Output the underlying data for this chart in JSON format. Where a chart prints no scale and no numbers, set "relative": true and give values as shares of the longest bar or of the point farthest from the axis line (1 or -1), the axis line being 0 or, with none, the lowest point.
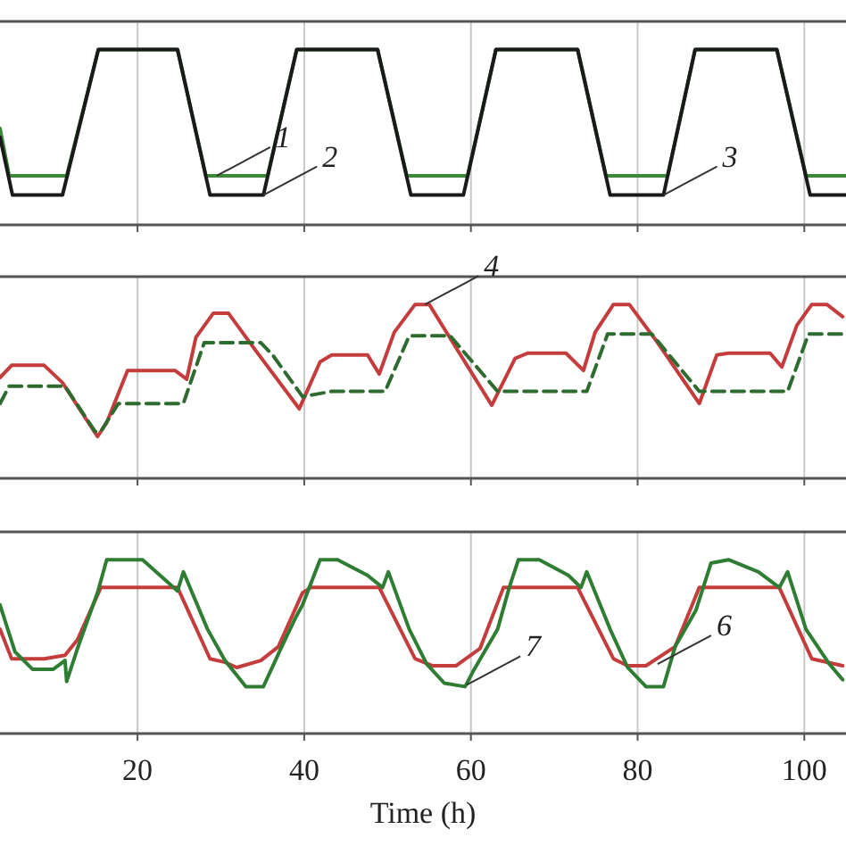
{
  "chart_data": [
    {
      "type": "line",
      "relative": true,
      "xlim": [
        3.5,
        105
      ],
      "xticks": [
        20,
        40,
        60,
        80,
        100
      ],
      "grid": "x",
      "tick_labels": false,
      "series": [
        {
          "color": "#3a8a3a",
          "x": [
            3.5,
            4.6,
            11.5,
            15.3,
            24.8,
            28.2,
            35.6,
            39.1,
            48.8,
            52.3,
            59.6,
            63,
            72.8,
            76.2,
            83.6,
            86.9,
            96.7,
            100.2,
            105
          ],
          "values": [
            0.55,
            0.28,
            0.28,
            1,
            1,
            0.28,
            0.28,
            1,
            1,
            0.28,
            0.28,
            1,
            1,
            0.28,
            0.28,
            1,
            1,
            0.28,
            0.28
          ]
        },
        {
          "color": "#1a1a1a",
          "x": [
            3.5,
            5,
            11,
            15.3,
            24.8,
            28.7,
            35.1,
            39.1,
            48.8,
            52.8,
            59.1,
            63,
            72.8,
            76.7,
            83.1,
            86.9,
            96.7,
            100.7,
            105
          ],
          "values": [
            0.5,
            0.17,
            0.17,
            1,
            1,
            0.17,
            0.17,
            1,
            1,
            0.17,
            0.17,
            1,
            1,
            0.17,
            0.17,
            1,
            1,
            0.17,
            0.17
          ]
        }
      ],
      "annotations": [
        {
          "text": "1",
          "x": 29.5,
          "y": 0.28
        },
        {
          "text": "2",
          "x": 35.1,
          "y": 0.17
        },
        {
          "text": "3",
          "x": 83.1,
          "y": 0.17
        }
      ]
    },
    {
      "type": "line",
      "relative": true,
      "xlim": [
        3.5,
        105
      ],
      "xticks": [
        20,
        40,
        60,
        80,
        100
      ],
      "grid": "x",
      "tick_labels": false,
      "series": [
        {
          "color": "#c43c3c",
          "x": [
            3.5,
            4.9,
            8.8,
            11,
            15.2,
            16.3,
            18.8,
            24.5,
            25.9,
            27,
            29.1,
            30.9,
            34.1,
            39.4,
            41.9,
            43.3,
            47.6,
            49,
            50.8,
            53.3,
            55,
            62.5,
            65.3,
            66.8,
            71.4,
            73.5,
            74.9,
            77.1,
            79,
            82.4,
            87.4,
            89.5,
            90.9,
            95.9,
            97.3,
            99.1,
            100.9,
            102.7,
            104.6
          ],
          "values": [
            0.58,
            0.65,
            0.65,
            0.55,
            0.24,
            0.32,
            0.62,
            0.62,
            0.57,
            0.81,
            0.95,
            0.95,
            0.74,
            0.4,
            0.67,
            0.71,
            0.71,
            0.6,
            0.84,
            1,
            1,
            0.42,
            0.69,
            0.72,
            0.72,
            0.62,
            0.84,
            1,
            1,
            0.78,
            0.43,
            0.71,
            0.72,
            0.72,
            0.64,
            0.88,
            1,
            1,
            0.93
          ]
        },
        {
          "color": "#2e6b2e",
          "line_style": "dashed",
          "x": [
            3.5,
            4.6,
            11.3,
            14.9,
            15.6,
            17.7,
            25.5,
            28,
            34.8,
            36.2,
            39.8,
            43.3,
            49.7,
            52.6,
            57.5,
            63.2,
            73.9,
            76.4,
            81.7,
            87.4,
            98,
            100.5,
            104.6
          ],
          "values": [
            0.43,
            0.53,
            0.53,
            0.27,
            0.27,
            0.43,
            0.43,
            0.78,
            0.78,
            0.71,
            0.47,
            0.5,
            0.5,
            0.82,
            0.82,
            0.5,
            0.5,
            0.83,
            0.83,
            0.5,
            0.5,
            0.83,
            0.83
          ]
        }
      ],
      "annotations": [
        {
          "text": "4",
          "x": 54.5,
          "y": 1
        }
      ]
    },
    {
      "type": "line",
      "relative": true,
      "xlim": [
        3.5,
        105
      ],
      "xticks": [
        20,
        40,
        60,
        80,
        100
      ],
      "grid": "x",
      "tick_labels": "x",
      "xlabel": "Time (h)",
      "series": [
        {
          "color": "#c43c3c",
          "x": [
            3.5,
            4.9,
            8.8,
            11.3,
            12.8,
            15.6,
            24.8,
            28.7,
            30.5,
            31.9,
            34.8,
            36.9,
            39.8,
            40.8,
            49,
            53.3,
            55.4,
            58.2,
            61.1,
            63.9,
            72.8,
            77.1,
            78.8,
            81,
            84.5,
            87.4,
            97,
            100.9,
            104.6
          ],
          "values": [
            0.6,
            0.43,
            0.43,
            0.45,
            0.54,
            0.84,
            0.84,
            0.43,
            0.41,
            0.38,
            0.42,
            0.5,
            0.81,
            0.84,
            0.84,
            0.43,
            0.39,
            0.39,
            0.49,
            0.84,
            0.84,
            0.43,
            0.39,
            0.39,
            0.5,
            0.84,
            0.84,
            0.43,
            0.39
          ]
        },
        {
          "color": "#2e7d32",
          "x": [
            3.5,
            5.3,
            7.4,
            9.9,
            11.3,
            11.5,
            12.8,
            15.2,
            16.3,
            20.6,
            23.4,
            24.8,
            25.5,
            28.4,
            30.5,
            33,
            35.1,
            37.3,
            39,
            39.8,
            41.9,
            44,
            47.6,
            49.4,
            50.1,
            52.6,
            54.7,
            56.8,
            59.3,
            60.4,
            63.2,
            64.6,
            65.7,
            68.2,
            71.7,
            73.2,
            73.9,
            76.7,
            78.8,
            81,
            83.1,
            84.5,
            87,
            88.8,
            90.9,
            94.5,
            97,
            98,
            100.2,
            103,
            104.6
          ],
          "values": [
            0.74,
            0.47,
            0.37,
            0.37,
            0.42,
            0.3,
            0.49,
            0.81,
            1,
            1,
            0.88,
            0.82,
            0.93,
            0.6,
            0.42,
            0.27,
            0.27,
            0.5,
            0.67,
            0.74,
            1,
            1,
            0.91,
            0.84,
            0.93,
            0.6,
            0.4,
            0.29,
            0.27,
            0.37,
            0.6,
            0.84,
            1,
            1,
            0.91,
            0.84,
            0.93,
            0.6,
            0.38,
            0.27,
            0.27,
            0.5,
            0.71,
            0.98,
            1,
            0.93,
            0.84,
            0.93,
            0.6,
            0.4,
            0.31
          ]
        }
      ],
      "annotations": [
        {
          "text": "6",
          "x": 82.4,
          "y": 0.4
        },
        {
          "text": "7",
          "x": 59.5,
          "y": 0.28
        }
      ]
    }
  ]
}
